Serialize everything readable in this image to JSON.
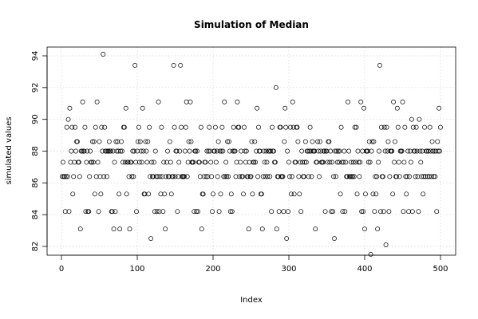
{
  "chart_data": {
    "type": "scatter",
    "title": "Simulation of Median",
    "xlabel": "Index",
    "ylabel": "simulated values",
    "xlim": [
      0,
      500
    ],
    "ylim": [
      82,
      94
    ],
    "xticks": [
      0,
      100,
      200,
      300,
      400,
      500
    ],
    "yticks": [
      82,
      84,
      86,
      88,
      90,
      92,
      94
    ],
    "grid": true,
    "marker": "open-circle",
    "levels": [
      81.5,
      82.1,
      82.5,
      83.1,
      84.2,
      84.4,
      85.3,
      86.4,
      87.3,
      88.0,
      88.6,
      89.5,
      90.0,
      90.7,
      91.1,
      92.0,
      93.4,
      94.1
    ],
    "y_major": [
      83.1,
      84.2,
      85.3,
      86.4,
      87.3,
      88.0,
      88.6,
      89.5,
      90.7
    ],
    "n": 500,
    "seed": 42,
    "extremes": [
      {
        "x": 9,
        "y": 90.0
      },
      {
        "x": 25,
        "y": 83.1
      },
      {
        "x": 28,
        "y": 91.1
      },
      {
        "x": 47,
        "y": 91.1
      },
      {
        "x": 55,
        "y": 94.1
      },
      {
        "x": 90,
        "y": 83.1
      },
      {
        "x": 97,
        "y": 93.4
      },
      {
        "x": 107,
        "y": 90.7
      },
      {
        "x": 118,
        "y": 82.5
      },
      {
        "x": 128,
        "y": 91.1
      },
      {
        "x": 137,
        "y": 83.1
      },
      {
        "x": 148,
        "y": 93.4
      },
      {
        "x": 157,
        "y": 93.4
      },
      {
        "x": 165,
        "y": 91.1
      },
      {
        "x": 170,
        "y": 91.1
      },
      {
        "x": 185,
        "y": 83.1
      },
      {
        "x": 215,
        "y": 91.1
      },
      {
        "x": 232,
        "y": 91.1
      },
      {
        "x": 247,
        "y": 83.1
      },
      {
        "x": 265,
        "y": 83.1
      },
      {
        "x": 283,
        "y": 92.0
      },
      {
        "x": 297,
        "y": 82.5
      },
      {
        "x": 305,
        "y": 91.1
      },
      {
        "x": 335,
        "y": 83.1
      },
      {
        "x": 360,
        "y": 82.5
      },
      {
        "x": 378,
        "y": 91.1
      },
      {
        "x": 395,
        "y": 91.1
      },
      {
        "x": 400,
        "y": 83.1
      },
      {
        "x": 408,
        "y": 81.5
      },
      {
        "x": 420,
        "y": 93.4
      },
      {
        "x": 428,
        "y": 82.1
      },
      {
        "x": 438,
        "y": 91.1
      },
      {
        "x": 450,
        "y": 91.1
      },
      {
        "x": 462,
        "y": 90.0
      },
      {
        "x": 472,
        "y": 90.0
      },
      {
        "x": 498,
        "y": 90.7
      }
    ]
  }
}
